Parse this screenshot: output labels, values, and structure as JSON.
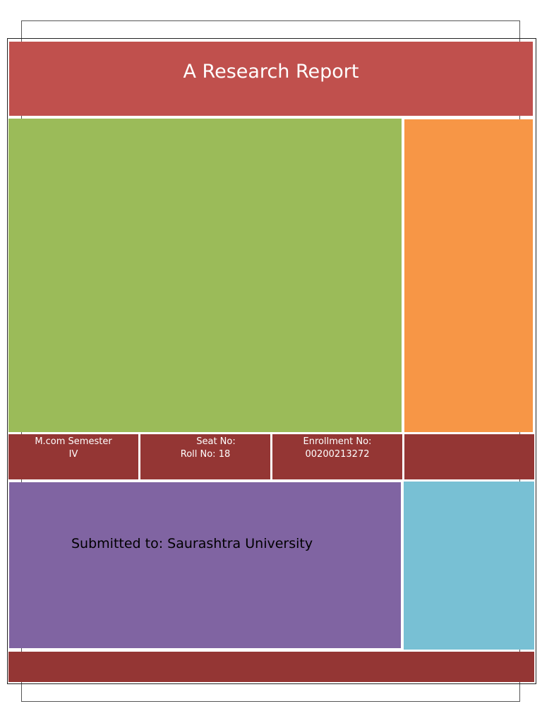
{
  "document": {
    "title": "A Research Report",
    "course_line1": "M.com Semester",
    "course_line2": "IV",
    "seat_label": "Seat No:",
    "roll_label": "Roll No: 18",
    "enrollment_label": "Enrollment No:",
    "enrollment_value": "00200213272",
    "submitted_to": "Submitted to: Saurashtra University"
  },
  "colors": {
    "header_red": "#c0504d",
    "green": "#9bbb59",
    "orange": "#f79646",
    "dark_red": "#943634",
    "purple": "#8064a2",
    "blue": "#78c0d4"
  }
}
